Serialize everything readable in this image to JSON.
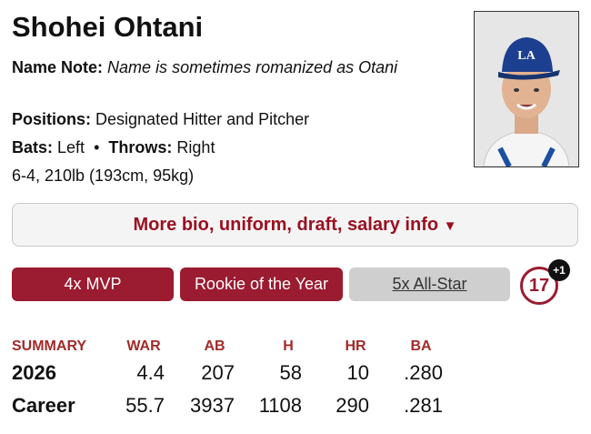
{
  "player": {
    "name": "Shohei Ohtani",
    "name_note": {
      "label": "Name Note:",
      "text": "Name is sometimes romanized as Otani"
    },
    "positions": {
      "label": "Positions:",
      "text": "Designated Hitter and Pitcher"
    },
    "bats": {
      "label": "Bats:",
      "text": "Left"
    },
    "separator": "•",
    "throws": {
      "label": "Throws:",
      "text": "Right"
    },
    "size": "6-4, 210lb (193cm, 95kg)"
  },
  "more_button": {
    "text": "More bio, uniform, draft, salary info",
    "icon": "▼"
  },
  "badges": [
    "4x MVP",
    "Rookie of the Year",
    "5x All-Star"
  ],
  "number_badge": {
    "number": "17",
    "extra": "+1"
  },
  "summary": {
    "header": [
      "SUMMARY",
      "WAR",
      "AB",
      "H",
      "HR",
      "BA"
    ],
    "rows": [
      [
        "2026",
        "4.4",
        "207",
        "58",
        "10",
        ".280"
      ],
      [
        "Career",
        "55.7",
        "3937",
        "1108",
        "290",
        ".281"
      ]
    ]
  }
}
